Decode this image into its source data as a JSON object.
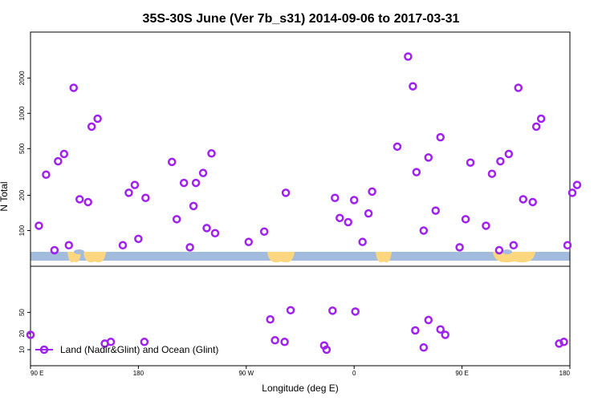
{
  "chart_data": {
    "type": "scatter",
    "title": "35S-30S June (Ver 7b_s31)   2014-09-06 to 2017-03-31",
    "xlabel": "Longitude (deg E)",
    "ylabel": "N Total",
    "x_ticks": [
      {
        "value": 90,
        "label": "90 E"
      },
      {
        "value": 180,
        "label": "180"
      },
      {
        "value": 270,
        "label": "90 W"
      },
      {
        "value": 360,
        "label": "0"
      },
      {
        "value": 450,
        "label": "90 E"
      },
      {
        "value": 540,
        "label": "180"
      }
    ],
    "xlim": [
      90,
      540
    ],
    "y_upper": {
      "scale": "log",
      "ticks": [
        100,
        200,
        500,
        1000,
        2000
      ],
      "tick_labels": [
        "100",
        "200",
        "500",
        "1000",
        "2000"
      ]
    },
    "y_lower": {
      "scale": "log",
      "ticks": [
        10,
        20,
        50
      ],
      "tick_labels": [
        "10",
        "20",
        "50"
      ]
    },
    "legend": {
      "label": "Land (Nadir&Glint) and Ocean (Glint)",
      "position": "bottom-left"
    },
    "colors": {
      "marker": "#a020f0",
      "ocean_band": "#a3bbdc",
      "land_band": "#fcd77f"
    },
    "series": [
      {
        "name": "Land (Nadir&Glint) and Ocean (Glint)",
        "points": [
          [
            97,
            110
          ],
          [
            103,
            300
          ],
          [
            110,
            68
          ],
          [
            113,
            390
          ],
          [
            118,
            450
          ],
          [
            122,
            75
          ],
          [
            126,
            1650
          ],
          [
            131,
            185
          ],
          [
            138,
            175
          ],
          [
            141,
            770
          ],
          [
            146,
            900
          ],
          [
            167,
            75
          ],
          [
            172,
            210
          ],
          [
            177,
            245
          ],
          [
            180,
            85
          ],
          [
            186,
            190
          ],
          [
            208,
            385
          ],
          [
            212,
            125
          ],
          [
            218,
            255
          ],
          [
            228,
            255
          ],
          [
            234,
            310
          ],
          [
            241,
            455
          ],
          [
            223,
            72
          ],
          [
            226,
            162
          ],
          [
            237,
            105
          ],
          [
            244,
            95
          ],
          [
            272,
            80
          ],
          [
            285,
            98
          ],
          [
            303,
            210
          ],
          [
            344,
            190
          ],
          [
            348,
            128
          ],
          [
            355,
            118
          ],
          [
            360,
            182
          ],
          [
            367,
            80
          ],
          [
            372,
            140
          ],
          [
            375,
            215
          ],
          [
            396,
            520
          ],
          [
            405,
            3050
          ],
          [
            409,
            1700
          ],
          [
            412,
            315
          ],
          [
            418,
            100
          ],
          [
            422,
            420
          ],
          [
            428,
            148
          ],
          [
            432,
            625
          ],
          [
            448,
            72
          ],
          [
            453,
            125
          ],
          [
            457,
            380
          ],
          [
            470,
            110
          ],
          [
            475,
            305
          ],
          [
            481,
            68
          ],
          [
            482,
            390
          ],
          [
            489,
            450
          ],
          [
            493,
            75
          ],
          [
            497,
            1650
          ],
          [
            501,
            185
          ],
          [
            509,
            175
          ],
          [
            512,
            770
          ],
          [
            516,
            900
          ],
          [
            538,
            75
          ],
          [
            542,
            210
          ],
          [
            546,
            245
          ]
        ]
      },
      {
        "name": "Land (Nadir&Glint) and Ocean (Glint)",
        "points": [
          [
            90,
            19
          ],
          [
            152,
            13
          ],
          [
            157,
            14
          ],
          [
            185,
            14
          ],
          [
            307,
            55
          ],
          [
            342,
            54
          ],
          [
            361,
            52
          ],
          [
            290,
            37
          ],
          [
            294,
            15
          ],
          [
            302,
            14
          ],
          [
            335,
            12
          ],
          [
            337,
            10
          ],
          [
            411,
            23
          ],
          [
            418,
            11
          ],
          [
            422,
            36
          ],
          [
            432,
            24
          ],
          [
            436,
            19
          ],
          [
            531,
            13
          ],
          [
            535,
            14
          ]
        ]
      }
    ]
  }
}
